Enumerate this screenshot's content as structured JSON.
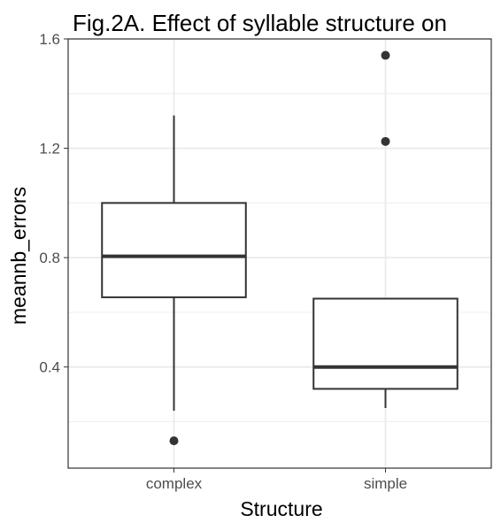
{
  "chart_data": {
    "type": "boxplot",
    "title": "Fig.2A. Effect of syllable structure on",
    "xlabel": "Structure",
    "ylabel": "meannb_errors",
    "categories": [
      "complex",
      "simple"
    ],
    "y_ticks": [
      0.4,
      0.8,
      1.2,
      1.6
    ],
    "y_tick_labels": [
      "0.4",
      "0.8",
      "1.2",
      "1.6"
    ],
    "ylim": [
      0.03,
      1.6
    ],
    "grid": true,
    "theme": "black-and-white",
    "boxes": [
      {
        "category": "complex",
        "whisker_low": 0.24,
        "q1": 0.655,
        "median": 0.805,
        "q3": 1.0,
        "whisker_high": 1.32,
        "outliers": [
          0.13
        ]
      },
      {
        "category": "simple",
        "whisker_low": 0.25,
        "q1": 0.32,
        "median": 0.4,
        "q3": 0.65,
        "whisker_high": 0.65,
        "outliers": [
          1.225,
          1.54
        ]
      }
    ],
    "colors": {
      "box_line": "#333333",
      "box_fill": "#ffffff",
      "grid": "#ebebeb",
      "panel_border": "#333333",
      "tick_text": "#4d4d4d"
    }
  }
}
